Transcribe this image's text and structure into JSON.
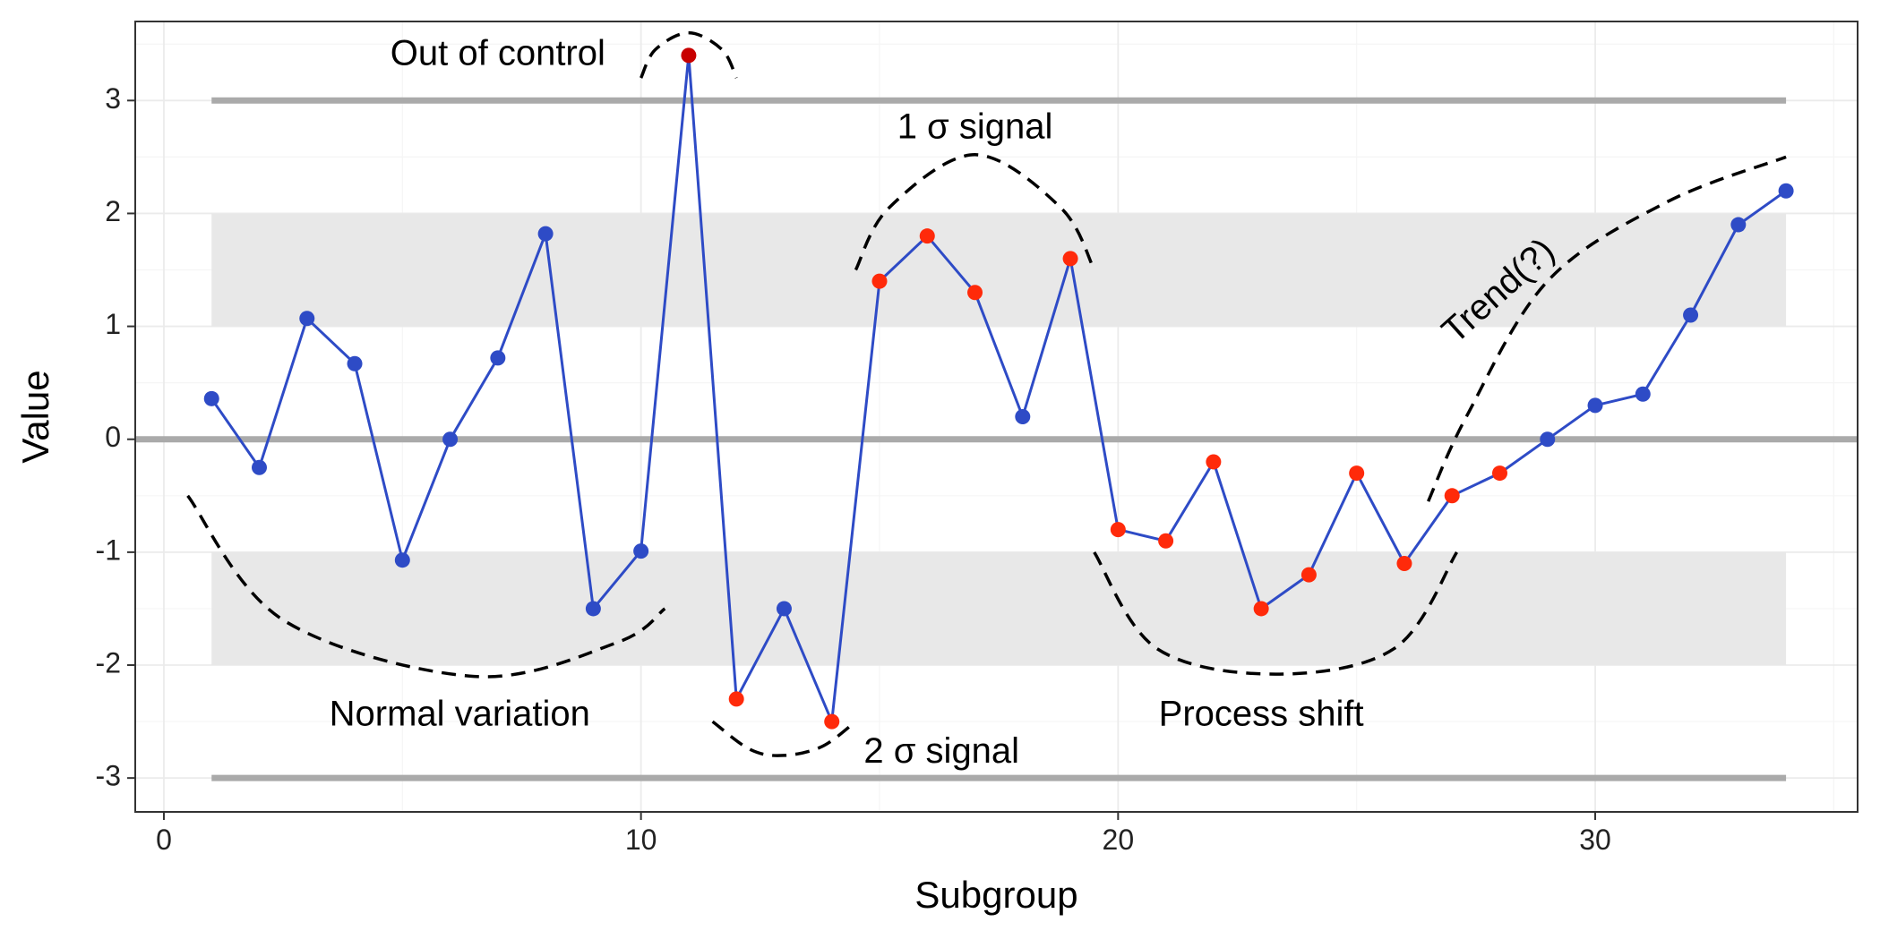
{
  "chart_data": {
    "type": "line",
    "xlabel": "Subgroup",
    "ylabel": "Value",
    "xlim": [
      -0.6,
      35.5
    ],
    "ylim": [
      -3.3,
      3.7
    ],
    "x_ticks": [
      0,
      10,
      20,
      30
    ],
    "y_ticks": [
      -3,
      -2,
      -1,
      0,
      1,
      2,
      3
    ],
    "grid": true,
    "control_lines": {
      "center": 0,
      "upper": 3,
      "lower": -3
    },
    "sigma_bands": [
      {
        "from": 1,
        "to": 2
      },
      {
        "from": -2,
        "to": -1
      }
    ],
    "band_x_range": [
      1,
      34
    ],
    "colors": {
      "line": "#2E4BC6",
      "normal_point": "#2E4BC6",
      "signal_point": "#FF2A0A",
      "out_of_control_point": "#C80000",
      "control_line": "#AAAAAA",
      "band": "#E8E8E8",
      "grid": "#EBEBEB",
      "panel_border": "#333333"
    },
    "x": [
      1,
      2,
      3,
      4,
      5,
      6,
      7,
      8,
      9,
      10,
      11,
      12,
      13,
      14,
      15,
      16,
      17,
      18,
      19,
      20,
      21,
      22,
      23,
      24,
      25,
      26,
      27,
      28,
      29,
      30,
      31,
      32,
      33,
      34
    ],
    "values": [
      0.36,
      -0.25,
      1.07,
      0.67,
      -1.07,
      0.0,
      0.72,
      1.82,
      -1.5,
      -0.99,
      3.4,
      -2.3,
      -1.5,
      -2.5,
      1.4,
      1.8,
      1.3,
      0.2,
      1.6,
      -0.8,
      -0.9,
      -0.2,
      -1.5,
      -1.2,
      -0.3,
      -1.1,
      -0.5,
      -0.3,
      0.0,
      0.3,
      0.4,
      1.1,
      1.9,
      2.2
    ],
    "point_status": [
      "normal",
      "normal",
      "normal",
      "normal",
      "normal",
      "normal",
      "normal",
      "normal",
      "normal",
      "normal",
      "out_of_control",
      "signal",
      "normal",
      "signal",
      "signal",
      "signal",
      "signal",
      "normal",
      "signal",
      "signal",
      "signal",
      "signal",
      "signal",
      "signal",
      "signal",
      "signal",
      "signal",
      "signal",
      "normal",
      "normal",
      "normal",
      "normal",
      "normal",
      "normal"
    ],
    "annotations": [
      {
        "text": "Out of control",
        "x": 7.0,
        "y": 3.4,
        "anchor": "middle",
        "rotate": 0
      },
      {
        "text": "1 σ signal",
        "x": 17.0,
        "y": 2.75,
        "anchor": "middle",
        "rotate": 0
      },
      {
        "text": "Trend(?)",
        "x": 28.0,
        "y": 1.3,
        "anchor": "middle",
        "rotate": -42
      },
      {
        "text": "Normal variation",
        "x": 6.2,
        "y": -2.45,
        "anchor": "middle",
        "rotate": 0
      },
      {
        "text": "Process shift",
        "x": 23.0,
        "y": -2.45,
        "anchor": "middle",
        "rotate": 0
      },
      {
        "text": "2 σ signal",
        "x": 16.3,
        "y": -2.78,
        "anchor": "middle",
        "rotate": 0
      }
    ],
    "dashed_curves": [
      {
        "name": "out-of-control-arc",
        "points": [
          [
            10.0,
            3.2
          ],
          [
            10.3,
            3.45
          ],
          [
            11.0,
            3.6
          ],
          [
            11.7,
            3.45
          ],
          [
            12.0,
            3.2
          ]
        ]
      },
      {
        "name": "one-sigma-arc",
        "points": [
          [
            14.5,
            1.5
          ],
          [
            15.2,
            2.05
          ],
          [
            17.0,
            2.52
          ],
          [
            18.8,
            2.05
          ],
          [
            19.5,
            1.5
          ]
        ]
      },
      {
        "name": "trend-curve",
        "points": [
          [
            26.5,
            -0.55
          ],
          [
            27.3,
            0.2
          ],
          [
            29.0,
            1.4
          ],
          [
            31.5,
            2.1
          ],
          [
            34.0,
            2.5
          ]
        ]
      },
      {
        "name": "normal-variation-arc",
        "points": [
          [
            0.5,
            -0.5
          ],
          [
            2.5,
            -1.6
          ],
          [
            6.5,
            -2.1
          ],
          [
            9.5,
            -1.8
          ],
          [
            10.5,
            -1.5
          ]
        ]
      },
      {
        "name": "process-shift-arc",
        "points": [
          [
            19.5,
            -1.0
          ],
          [
            20.8,
            -1.85
          ],
          [
            23.3,
            -2.08
          ],
          [
            25.8,
            -1.85
          ],
          [
            27.1,
            -1.0
          ]
        ]
      },
      {
        "name": "two-sigma-arc",
        "points": [
          [
            11.5,
            -2.5
          ],
          [
            12.3,
            -2.75
          ],
          [
            13.0,
            -2.8
          ],
          [
            13.8,
            -2.72
          ],
          [
            14.5,
            -2.5
          ]
        ]
      }
    ]
  }
}
